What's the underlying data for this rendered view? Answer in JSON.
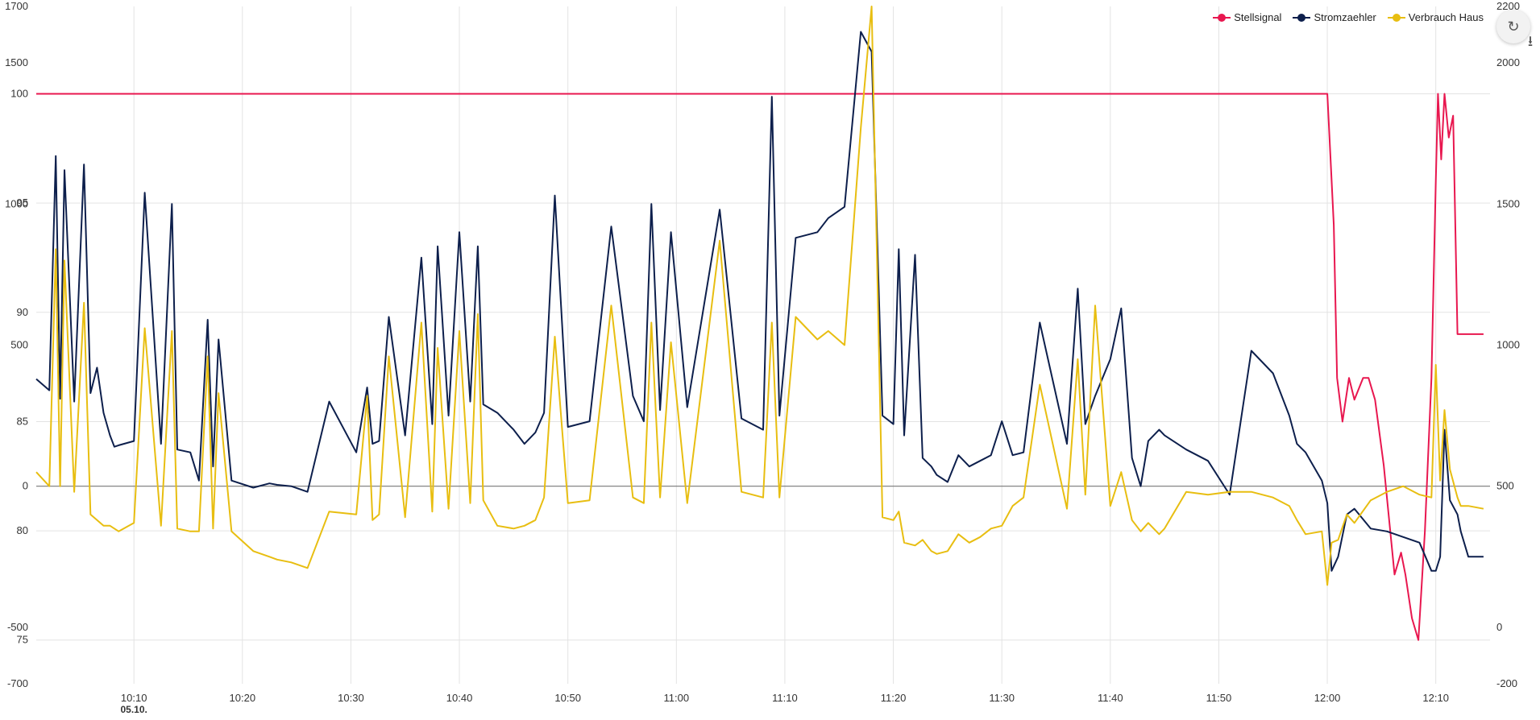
{
  "chart_data": {
    "type": "line",
    "date_label": "05.10.",
    "x_range": [
      "10:01",
      "12:15"
    ],
    "x_ticks": [
      "10:10",
      "10:20",
      "10:30",
      "10:40",
      "10:50",
      "11:00",
      "11:10",
      "11:20",
      "11:30",
      "11:40",
      "11:50",
      "12:00",
      "12:10"
    ],
    "y_axes": {
      "left_pct": {
        "ticks": [
          "100",
          "95",
          "90",
          "85",
          "80",
          "75"
        ],
        "range": [
          73,
          104
        ]
      },
      "left_power": {
        "ticks": [
          "1700",
          "1500",
          "1000",
          "500",
          "0",
          "-500",
          "-700"
        ],
        "range": [
          -700,
          1700
        ]
      },
      "right_power": {
        "ticks": [
          "2200",
          "2000",
          "1500",
          "1000",
          "500",
          "0",
          "-200"
        ],
        "range": [
          -200,
          2200
        ]
      }
    },
    "legend_position": "top-right",
    "grid": true,
    "series": [
      {
        "name": "Stellsignal",
        "color": "#e8174f",
        "axis": "left_pct",
        "x": [
          0,
          119.0,
          119.2,
          119.6,
          119.9,
          120.4,
          121.0,
          121.5,
          122.3,
          122.8,
          123.4,
          124.2,
          125.2,
          125.8,
          126.2,
          126.8,
          127.4,
          128.0,
          128.6,
          129.0,
          129.2,
          129.5,
          129.8,
          130.2,
          130.6,
          131.0,
          131.8,
          132.2,
          133.4
        ],
        "values": [
          100,
          100,
          98,
          94,
          87,
          85,
          87,
          86,
          87,
          87,
          86,
          83,
          78,
          79,
          78,
          76,
          75,
          80,
          87,
          96,
          100,
          97,
          100,
          98,
          99,
          89,
          89,
          89,
          89
        ]
      },
      {
        "name": "Stromzaehler",
        "color": "#0d1f4c",
        "axis": "left_power",
        "x": [
          0,
          1.2,
          1.8,
          2.2,
          2.6,
          3.5,
          4.4,
          5.0,
          5.6,
          6.2,
          6.8,
          7.2,
          7.6,
          9,
          10,
          11.5,
          12.5,
          13,
          14.2,
          15,
          15.8,
          16.3,
          16.8,
          18,
          20,
          21.5,
          22.2,
          23.5,
          25,
          27,
          29.5,
          30.5,
          31,
          31.6,
          32.5,
          34,
          35.5,
          36.5,
          37,
          38,
          39,
          40,
          40.7,
          41.2,
          42.5,
          44,
          45,
          46,
          46.8,
          47.8,
          49,
          51,
          53,
          55,
          56,
          56.7,
          57.5,
          58.5,
          60,
          63,
          65,
          67,
          67.8,
          68.5,
          70,
          72,
          73,
          74.5,
          76,
          77,
          78,
          79,
          79.5,
          80,
          81,
          81.7,
          82.5,
          83,
          84,
          85,
          86,
          87,
          88,
          89,
          90,
          91,
          92.5,
          95,
          96,
          96.7,
          97.6,
          99,
          100,
          101,
          101.8,
          102.5,
          103.5,
          104,
          106,
          108,
          110,
          112,
          114,
          115.5,
          116.2,
          117,
          118.5,
          119,
          119.4,
          120,
          120.8,
          121.5,
          123,
          124.5,
          126,
          127.5,
          128.6,
          129,
          129.4,
          129.8,
          130.3,
          131,
          131.3,
          132,
          133.4
        ],
        "values": [
          380,
          340,
          1170,
          310,
          1120,
          300,
          1140,
          330,
          420,
          260,
          180,
          140,
          145,
          160,
          1040,
          150,
          1000,
          130,
          120,
          20,
          590,
          70,
          520,
          20,
          -5,
          10,
          5,
          0,
          -20,
          300,
          120,
          350,
          150,
          160,
          600,
          180,
          810,
          220,
          850,
          250,
          900,
          300,
          850,
          290,
          260,
          200,
          150,
          190,
          260,
          1030,
          210,
          230,
          920,
          320,
          230,
          1000,
          270,
          900,
          280,
          980,
          240,
          200,
          1380,
          250,
          880,
          900,
          950,
          990,
          1610,
          1540,
          250,
          220,
          840,
          180,
          820,
          100,
          70,
          40,
          15,
          110,
          70,
          90,
          110,
          230,
          110,
          120,
          580,
          150,
          700,
          220,
          320,
          450,
          630,
          100,
          0,
          160,
          200,
          180,
          130,
          90,
          -30,
          480,
          400,
          250,
          150,
          120,
          20,
          -60,
          -300,
          -250,
          -100,
          -80,
          -150,
          -160,
          -180,
          -200,
          -300,
          -300,
          -250,
          200,
          -50,
          -100,
          -160,
          -250,
          -250
        ]
      },
      {
        "name": "Verbrauch Haus",
        "color": "#e8be11",
        "axis": "right_power",
        "x": [
          0,
          1.2,
          1.8,
          2.2,
          2.6,
          3.5,
          4.4,
          5.0,
          5.6,
          6.2,
          6.8,
          7.2,
          7.6,
          9,
          10,
          11.5,
          12.5,
          13,
          14.2,
          15,
          15.8,
          16.3,
          16.8,
          18,
          20,
          21.5,
          22.2,
          23.5,
          25,
          27,
          29.5,
          30.5,
          31,
          31.6,
          32.5,
          34,
          35.5,
          36.5,
          37,
          38,
          39,
          40,
          40.7,
          41.2,
          42.5,
          44,
          45,
          46,
          46.8,
          47.8,
          49,
          51,
          53,
          55,
          56,
          56.7,
          57.5,
          58.5,
          60,
          63,
          65,
          67,
          67.8,
          68.5,
          70,
          72,
          73,
          74.5,
          76,
          77,
          78,
          79,
          79.5,
          80,
          81,
          81.7,
          82.5,
          83,
          84,
          85,
          86,
          87,
          88,
          89,
          90,
          91,
          92.5,
          95,
          96,
          96.7,
          97.6,
          99,
          100,
          101,
          101.8,
          102.5,
          103.5,
          104,
          106,
          108,
          110,
          112,
          114,
          115.5,
          116.2,
          117,
          118.5,
          119,
          119.4,
          120,
          120.8,
          121.5,
          123,
          124.5,
          126,
          127.5,
          128.6,
          129,
          129.4,
          129.8,
          130.3,
          131,
          131.3,
          132,
          133.4
        ],
        "values": [
          550,
          500,
          1340,
          500,
          1300,
          480,
          1150,
          400,
          380,
          360,
          360,
          350,
          340,
          370,
          1060,
          360,
          1050,
          350,
          340,
          340,
          960,
          350,
          830,
          340,
          270,
          250,
          240,
          230,
          210,
          410,
          400,
          820,
          380,
          400,
          960,
          390,
          1080,
          410,
          990,
          420,
          1050,
          440,
          1110,
          450,
          360,
          350,
          360,
          380,
          460,
          1030,
          440,
          450,
          1140,
          460,
          440,
          1080,
          460,
          1010,
          440,
          1370,
          480,
          460,
          1080,
          460,
          1100,
          1020,
          1050,
          1000,
          1770,
          2200,
          390,
          380,
          410,
          300,
          290,
          310,
          270,
          260,
          270,
          330,
          300,
          320,
          350,
          360,
          430,
          460,
          860,
          420,
          950,
          470,
          1140,
          430,
          550,
          380,
          340,
          370,
          330,
          350,
          480,
          470,
          480,
          480,
          460,
          430,
          380,
          330,
          340,
          150,
          300,
          310,
          400,
          370,
          450,
          480,
          500,
          470,
          460,
          930,
          520,
          770,
          560,
          460,
          430,
          430,
          420
        ]
      }
    ]
  }
}
